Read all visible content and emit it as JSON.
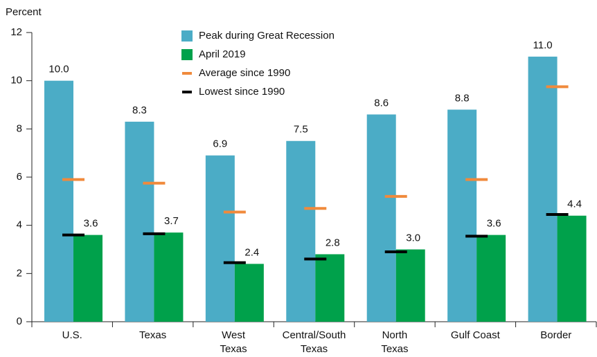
{
  "chart_data": {
    "type": "bar",
    "y_label": "Percent",
    "categories": [
      "U.S.",
      "Texas",
      "West\nTexas",
      "Central/South\nTexas",
      "North\nTexas",
      "Gulf Coast",
      "Border"
    ],
    "series": [
      {
        "name": "Peak during Great Recession",
        "color": "#4bacc6",
        "style": "bar",
        "values": [
          10,
          8.3,
          6.9,
          7.5,
          8.6,
          8.8,
          11
        ],
        "value_labels": [
          "10.0",
          "8.3",
          "6.9",
          "7.5",
          "8.6",
          "8.8",
          "11.0"
        ]
      },
      {
        "name": "April 2019",
        "color": "#00a14b",
        "style": "bar",
        "values": [
          3.6,
          3.7,
          2.4,
          2.8,
          3.0,
          3.6,
          4.4
        ],
        "value_labels": [
          "3.6",
          "3.7",
          "2.4",
          "2.8",
          "3.0",
          "3.6",
          "4.4"
        ]
      },
      {
        "name": "Average since 1990",
        "color": "#f08a3c",
        "style": "marker",
        "values": [
          5.9,
          5.75,
          4.55,
          4.7,
          5.2,
          5.9,
          9.75
        ]
      },
      {
        "name": "Lowest since 1990",
        "color": "#000000",
        "style": "marker",
        "values": [
          3.6,
          3.65,
          2.45,
          2.6,
          2.9,
          3.55,
          4.45
        ]
      }
    ],
    "ylim": [
      0,
      12
    ],
    "yticks": [
      0,
      2,
      4,
      6,
      8,
      10,
      12
    ]
  }
}
